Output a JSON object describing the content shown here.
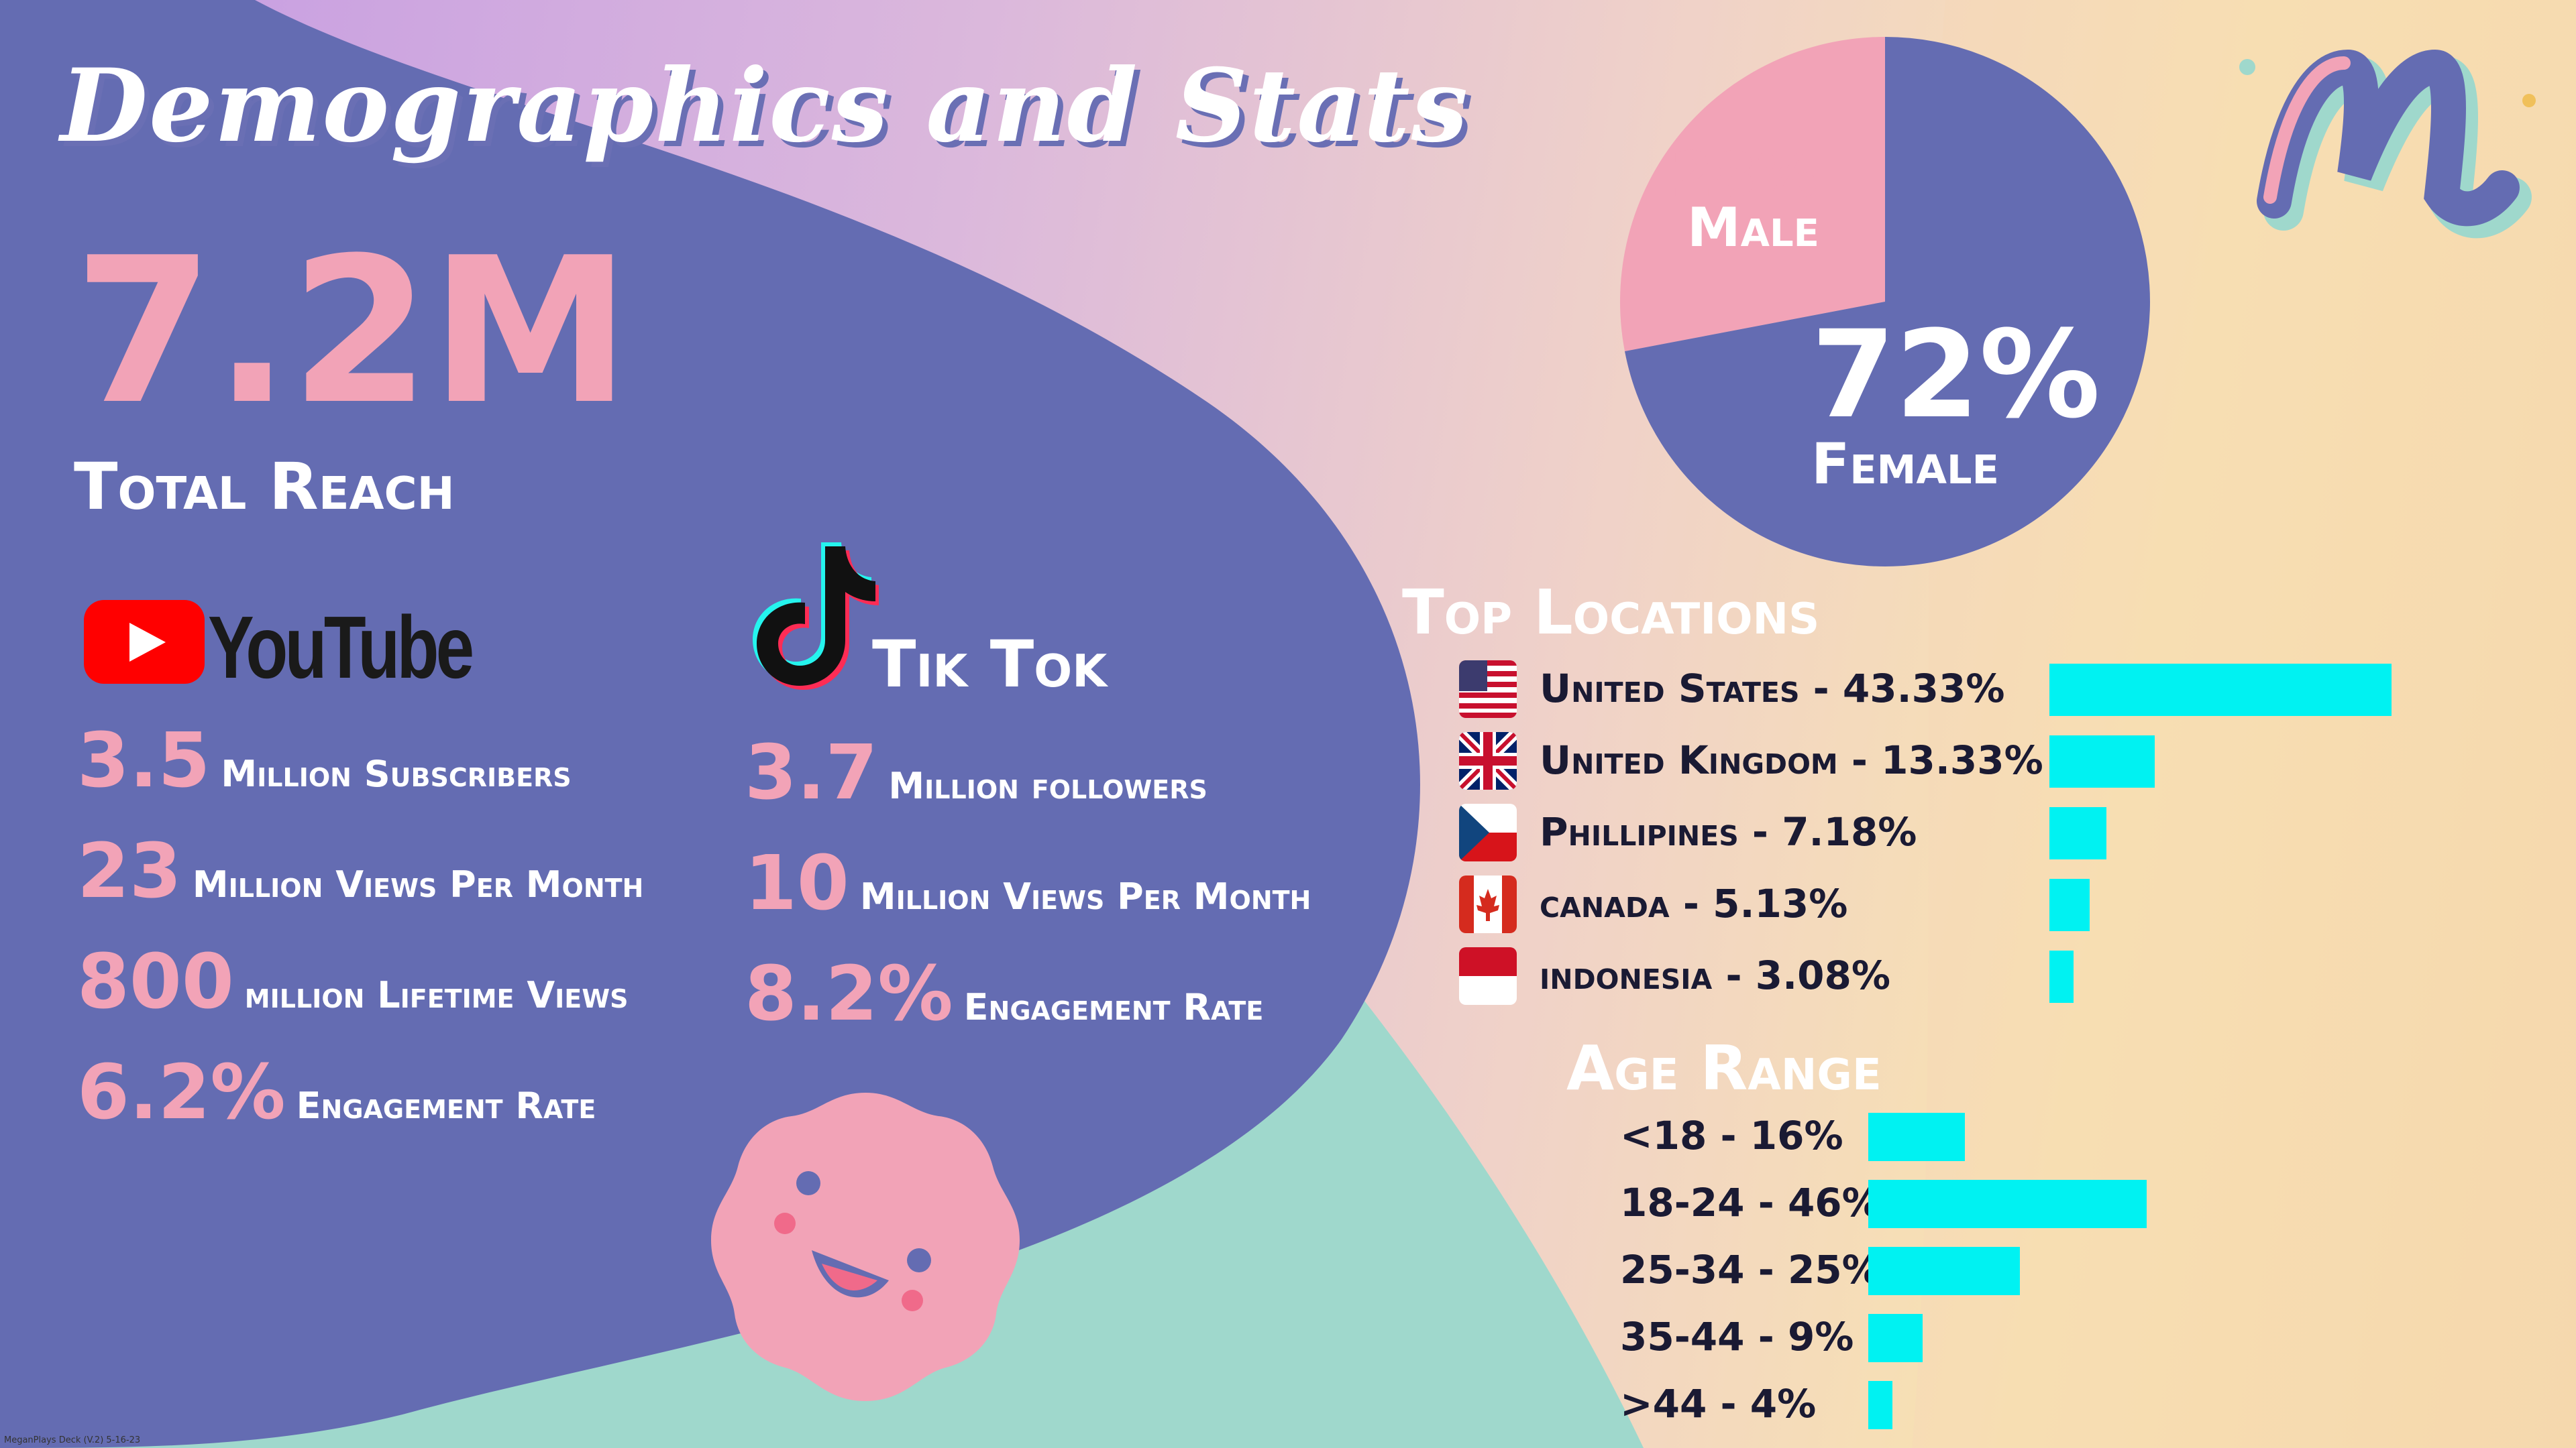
{
  "title": "Demographics and Stats",
  "total_reach": {
    "value": "7.2M",
    "label": "Total Reach"
  },
  "youtube": {
    "brand": "YouTube",
    "stats": [
      {
        "num": "3.5",
        "label": "Million Subscribers"
      },
      {
        "num": "23",
        "label": "Million Views Per Month"
      },
      {
        "num": "800",
        "label": "million Lifetime Views"
      },
      {
        "num": "6.2%",
        "label": "Engagement Rate"
      }
    ]
  },
  "tiktok": {
    "brand": "Tik Tok",
    "stats": [
      {
        "num": "3.7",
        "label": "Million followers"
      },
      {
        "num": "10",
        "label": "Million Views Per Month"
      },
      {
        "num": "8.2%",
        "label": "Engagement Rate"
      }
    ]
  },
  "gender": {
    "male": {
      "pct": "28%",
      "label": "Male"
    },
    "female": {
      "pct": "72%",
      "label": "Female"
    }
  },
  "locations": {
    "title": "Top Locations",
    "items": [
      {
        "label": "United States - 43.33%",
        "flag": "us-flag-icon"
      },
      {
        "label": "United Kingdom - 13.33%",
        "flag": "uk-flag-icon"
      },
      {
        "label": "Phillipines - 7.18%",
        "flag": "czech-flag-icon"
      },
      {
        "label": "canada - 5.13%",
        "flag": "canada-flag-icon"
      },
      {
        "label": "indonesia - 3.08%",
        "flag": "indonesia-flag-icon"
      }
    ]
  },
  "age": {
    "title": "Age Range",
    "items": [
      {
        "label": "<18 - 16%"
      },
      {
        "label": "18-24 - 46%"
      },
      {
        "label": "25-34 - 25%"
      },
      {
        "label": "35-44 - 9%"
      },
      {
        "label": ">44 - 4%"
      }
    ]
  },
  "colors": {
    "accent": "#00f2f2",
    "pink": "#f2a3b7",
    "purple": "#646cb2",
    "teal": "#9fd8cc"
  },
  "footer": "MeganPlays Deck (V.2) 5-16-23",
  "chart_data": [
    {
      "type": "pie",
      "categories": [
        "Male",
        "Female"
      ],
      "values": [
        28,
        72
      ]
    },
    {
      "type": "bar",
      "title": "Top Locations",
      "categories": [
        "United States",
        "United Kingdom",
        "Phillipines",
        "canada",
        "indonesia"
      ],
      "values": [
        43.33,
        13.33,
        7.18,
        5.13,
        3.08
      ]
    },
    {
      "type": "bar",
      "title": "Age Range",
      "categories": [
        "<18",
        "18-24",
        "25-34",
        "35-44",
        ">44"
      ],
      "values": [
        16,
        46,
        25,
        9,
        4
      ]
    }
  ]
}
